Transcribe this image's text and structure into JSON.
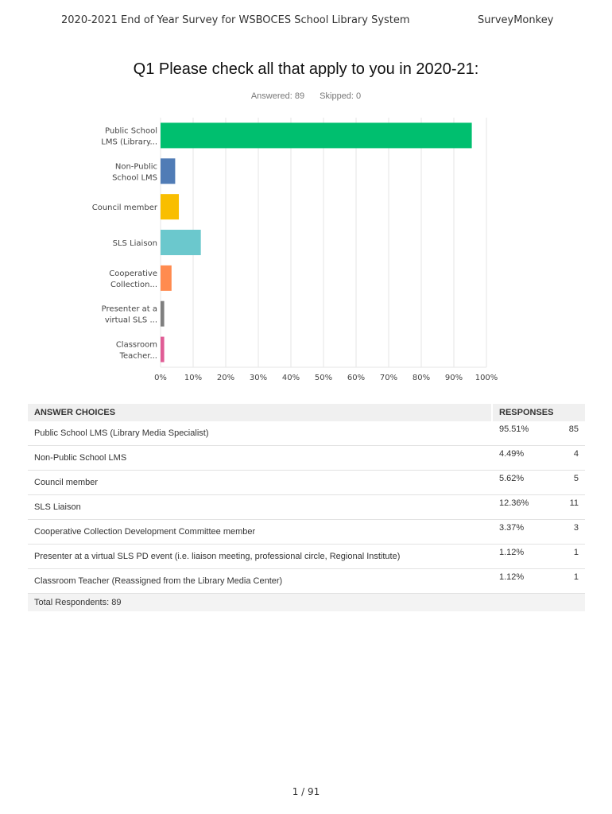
{
  "header": {
    "left": "2020-2021 End of Year Survey for WSBOCES School Library System",
    "right": "SurveyMonkey"
  },
  "question": {
    "title": "Q1 Please check all that apply to you in 2020-21:",
    "answered": "Answered: 89",
    "skipped": "Skipped: 0"
  },
  "chart_data": {
    "type": "bar",
    "orientation": "horizontal",
    "categories": [
      [
        "Public School",
        "LMS (Library..."
      ],
      [
        "Non-Public",
        "School LMS"
      ],
      [
        "Council member"
      ],
      [
        "SLS Liaison"
      ],
      [
        "Cooperative",
        "Collection..."
      ],
      [
        "Presenter at a",
        "virtual SLS ..."
      ],
      [
        "Classroom",
        "Teacher..."
      ]
    ],
    "values": [
      95.51,
      4.49,
      5.62,
      12.36,
      3.37,
      1.12,
      1.12
    ],
    "colors": [
      "#00bf6f",
      "#507cb6",
      "#f9be00",
      "#6bc8cd",
      "#ff8b4f",
      "#7f7f7f",
      "#e05c95"
    ],
    "xlim": [
      0,
      100
    ],
    "xticks": [
      "0%",
      "10%",
      "20%",
      "30%",
      "40%",
      "50%",
      "60%",
      "70%",
      "80%",
      "90%",
      "100%"
    ],
    "grid": true
  },
  "table": {
    "headers": {
      "choices": "ANSWER CHOICES",
      "responses": "RESPONSES"
    },
    "rows": [
      {
        "choice": "Public School LMS (Library Media Specialist)",
        "pct": "95.51%",
        "count": "85"
      },
      {
        "choice": "Non-Public School LMS",
        "pct": "4.49%",
        "count": "4"
      },
      {
        "choice": "Council member",
        "pct": "5.62%",
        "count": "5"
      },
      {
        "choice": "SLS Liaison",
        "pct": "12.36%",
        "count": "11"
      },
      {
        "choice": "Cooperative Collection Development Committee member",
        "pct": "3.37%",
        "count": "3"
      },
      {
        "choice": "Presenter at a virtual SLS PD event (i.e. liaison meeting, professional circle, Regional Institute)",
        "pct": "1.12%",
        "count": "1"
      },
      {
        "choice": "Classroom Teacher (Reassigned from the Library Media Center)",
        "pct": "1.12%",
        "count": "1"
      }
    ],
    "total": "Total Respondents: 89"
  },
  "footer": {
    "page": "1 / 91"
  }
}
